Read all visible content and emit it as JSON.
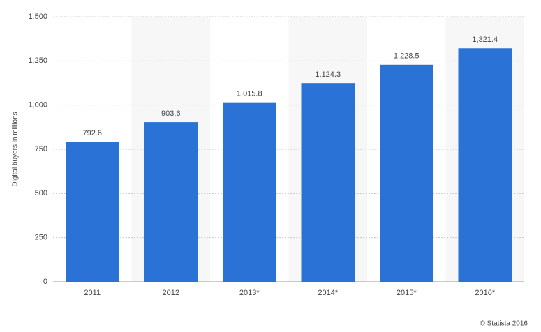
{
  "chart_data": {
    "type": "bar",
    "y_label": "Digital buyers in millions",
    "categories": [
      "2011",
      "2012",
      "2013*",
      "2014*",
      "2015*",
      "2016*"
    ],
    "values": [
      792.6,
      903.6,
      1015.8,
      1124.3,
      1228.5,
      1321.4
    ],
    "value_labels": [
      "792.6",
      "903.6",
      "1,015.8",
      "1,124.3",
      "1,228.5",
      "1,321.4"
    ],
    "color": "#2a72d6",
    "ylim": [
      0,
      1500
    ],
    "yticks": [
      0,
      250,
      500,
      750,
      {
        "value": 1000,
        "label": "1,000"
      },
      {
        "value": 1250,
        "label": "1,250"
      },
      {
        "value": 1500,
        "label": "1,500"
      }
    ],
    "grid": true,
    "credit": "© Statista 2016"
  }
}
